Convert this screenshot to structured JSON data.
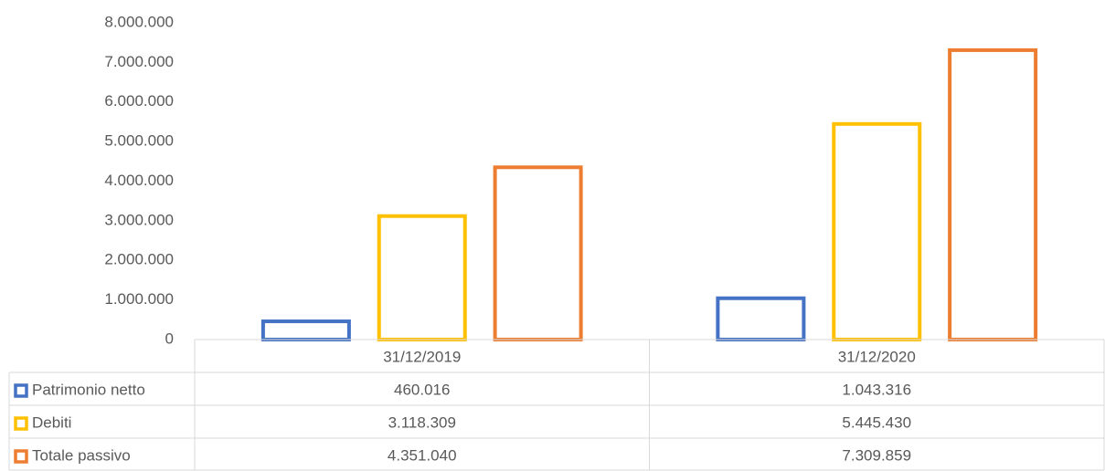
{
  "chart_data": {
    "type": "bar",
    "categories": [
      "31/12/2019",
      "31/12/2020"
    ],
    "series": [
      {
        "name": "Patrimonio netto",
        "color": "#4472c4",
        "values": [
          460016,
          1043316
        ],
        "value_labels": [
          "460.016",
          "1.043.316"
        ]
      },
      {
        "name": "Debiti",
        "color": "#ffc000",
        "values": [
          3118309,
          5445430
        ],
        "value_labels": [
          "3.118.309",
          "5.445.430"
        ]
      },
      {
        "name": "Totale passivo",
        "color": "#ed7d31",
        "values": [
          4351040,
          7309859
        ],
        "value_labels": [
          "4.351.040",
          "7.309.859"
        ]
      }
    ],
    "ylim": [
      0,
      8000000
    ],
    "yticks": [
      0,
      {
        "value": 1000000,
        "label": "1.000.000"
      },
      {
        "value": 2000000,
        "label": "2.000.000"
      },
      {
        "value": 3000000,
        "label": "3.000.000"
      },
      {
        "value": 4000000,
        "label": "4.000.000"
      },
      {
        "value": 5000000,
        "label": "5.000.000"
      },
      {
        "value": 6000000,
        "label": "6.000.000"
      },
      {
        "value": 7000000,
        "label": "7.000.000"
      },
      {
        "value": 8000000,
        "label": "8.000.000"
      }
    ],
    "grid": false,
    "data_table": true
  }
}
